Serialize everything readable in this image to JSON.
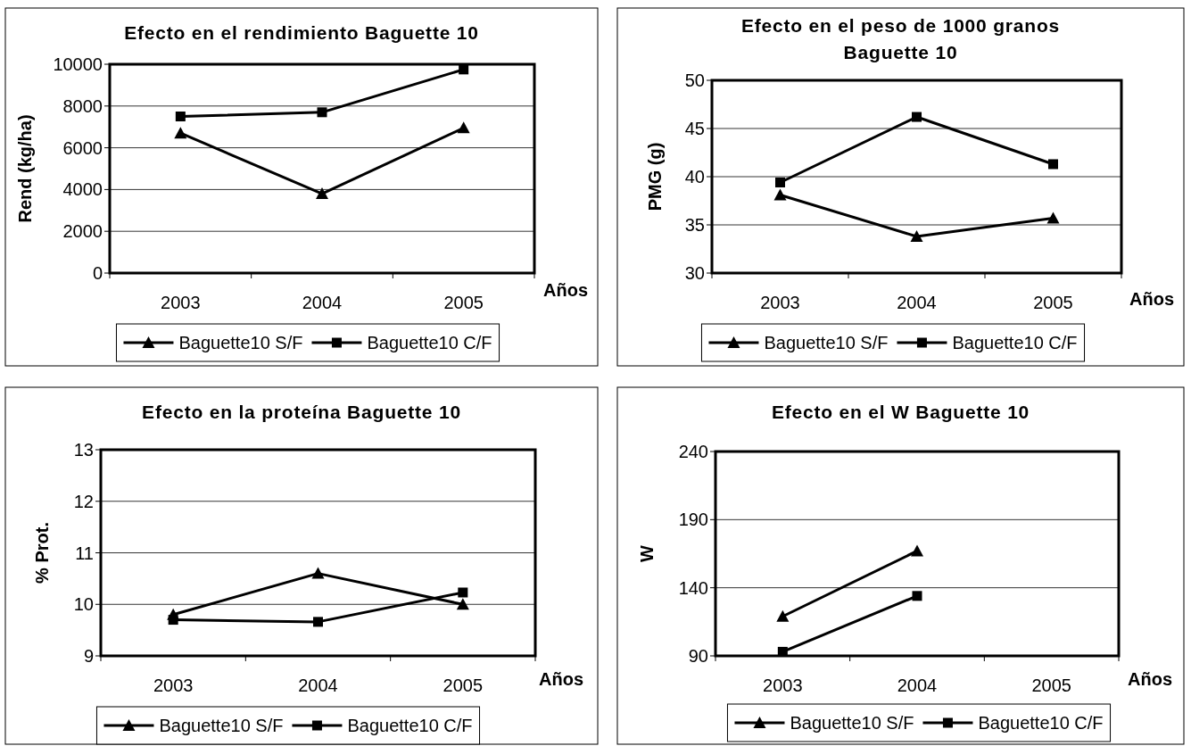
{
  "chart_data": [
    {
      "type": "line",
      "title": "Efecto en el rendimiento Baguette 10",
      "xlabel": "Años",
      "ylabel": "Rend (kg/ha)",
      "categories": [
        "2003",
        "2004",
        "2005"
      ],
      "series": [
        {
          "name": "Baguette10 S/F",
          "color": "#000000",
          "marker": "triangle",
          "values": [
            6700,
            3800,
            6950
          ]
        },
        {
          "name": "Baguette10 C/F",
          "color": "#000000",
          "marker": "square",
          "values": [
            7500,
            7700,
            9750
          ]
        }
      ],
      "ylim": [
        0,
        10000
      ],
      "yticks": [
        0,
        2000,
        4000,
        6000,
        8000,
        10000
      ],
      "grid": "y",
      "legend": "bottom"
    },
    {
      "type": "line",
      "title": "Efecto en el peso de 1000 granos Baguette 10",
      "xlabel": "Años",
      "ylabel": "PMG (g)",
      "categories": [
        "2003",
        "2004",
        "2005"
      ],
      "series": [
        {
          "name": "Baguette10 S/F",
          "color": "#000000",
          "marker": "triangle",
          "values": [
            38.1,
            33.8,
            35.7
          ]
        },
        {
          "name": "Baguette10 C/F",
          "color": "#000000",
          "marker": "square",
          "values": [
            39.4,
            46.2,
            41.3
          ]
        }
      ],
      "ylim": [
        30,
        50
      ],
      "yticks": [
        30,
        35,
        40,
        45,
        50
      ],
      "grid": "y",
      "legend": "bottom"
    },
    {
      "type": "line",
      "title": "Efecto en la proteína Baguette 10",
      "xlabel": "Años",
      "ylabel": "% Prot.",
      "categories": [
        "2003",
        "2004",
        "2005"
      ],
      "series": [
        {
          "name": "Baguette10 S/F",
          "color": "#000000",
          "marker": "triangle",
          "values": [
            9.8,
            10.6,
            10.0
          ]
        },
        {
          "name": "Baguette10 C/F",
          "color": "#000000",
          "marker": "square",
          "values": [
            9.7,
            9.66,
            10.23
          ]
        }
      ],
      "ylim": [
        9,
        13
      ],
      "yticks": [
        9,
        10,
        11,
        12,
        13
      ],
      "grid": "y",
      "legend": "bottom"
    },
    {
      "type": "line",
      "title": "Efecto en el W Baguette 10",
      "xlabel": "Años",
      "ylabel": "W",
      "categories": [
        "2003",
        "2004",
        "2005"
      ],
      "series": [
        {
          "name": "Baguette10 S/F",
          "color": "#000000",
          "marker": "triangle",
          "values": [
            119,
            167,
            null
          ]
        },
        {
          "name": "Baguette10 C/F",
          "color": "#000000",
          "marker": "square",
          "values": [
            93,
            134,
            null
          ]
        }
      ],
      "ylim": [
        90,
        240
      ],
      "yticks": [
        90,
        140,
        190,
        240
      ],
      "grid": "y",
      "legend": "bottom"
    }
  ]
}
